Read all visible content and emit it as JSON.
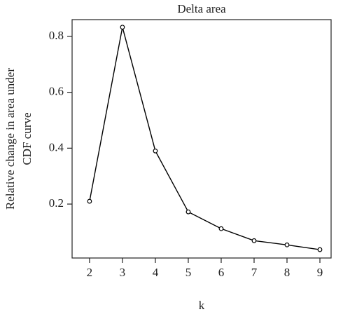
{
  "chart_data": {
    "type": "line",
    "title": "Delta area",
    "xlabel": "k",
    "ylabel": [
      "Relative change in area under",
      "CDF curve"
    ],
    "x": [
      2,
      3,
      4,
      5,
      6,
      7,
      8,
      9
    ],
    "values": [
      0.21,
      0.833,
      0.39,
      0.172,
      0.112,
      0.069,
      0.054,
      0.037
    ],
    "color": "#000000",
    "xlim": [
      1.47,
      9.34
    ],
    "ylim": [
      0.007,
      0.86
    ],
    "xticks": [
      2,
      3,
      4,
      5,
      6,
      7,
      8,
      9
    ],
    "yticks": [
      0.2,
      0.4,
      0.6,
      0.8
    ]
  }
}
